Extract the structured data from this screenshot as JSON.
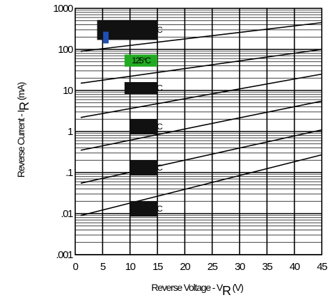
{
  "chart_data": {
    "type": "line",
    "xlabel": {
      "prefix": "Reverse Voltage - V",
      "sub": "R",
      "suffix": " (V)"
    },
    "ylabel": {
      "prefix": "Reverse Current - I",
      "sub": "R",
      "suffix": " (mA)"
    },
    "x_scale": "linear",
    "y_scale": "log",
    "xlim": [
      0,
      45
    ],
    "ylim": [
      0.001,
      1000
    ],
    "x_ticks": [
      "0",
      "5",
      "10",
      "15",
      "20",
      "25",
      "30",
      "35",
      "40",
      "45"
    ],
    "y_ticks": [
      "1000",
      "100",
      "10",
      "1",
      ".1",
      ".01",
      ".001"
    ],
    "grid": "log-minor horizontal, major vertical every 5 V",
    "series": [
      {
        "x": [
          1,
          45
        ],
        "y": [
          90,
          450
        ]
      },
      {
        "x": [
          1,
          45
        ],
        "y": [
          15,
          100
        ]
      },
      {
        "x": [
          1,
          45
        ],
        "y": [
          2.2,
          25
        ]
      },
      {
        "x": [
          1,
          45
        ],
        "y": [
          0.35,
          5.5
        ]
      },
      {
        "x": [
          1,
          45
        ],
        "y": [
          0.055,
          1.1
        ]
      },
      {
        "x": [
          1,
          45
        ],
        "y": [
          0.009,
          0.27
        ]
      }
    ],
    "annotations": [
      {
        "label": "",
        "fill": "#111111",
        "x": [
          4,
          15
        ],
        "y": [
          170,
          520
        ],
        "tail": "C"
      },
      {
        "label": "125°C",
        "fill": "#22aa22",
        "x": [
          9,
          15
        ],
        "y": [
          38,
          75
        ]
      },
      {
        "label": "",
        "fill": "#111111",
        "x": [
          9,
          15
        ],
        "y": [
          8.2,
          16
        ],
        "tail": "C"
      },
      {
        "label": "",
        "fill": "#111111",
        "x": [
          10,
          15
        ],
        "y": [
          0.85,
          2.0
        ],
        "tail": "C"
      },
      {
        "label": "",
        "fill": "#111111",
        "x": [
          10,
          15
        ],
        "y": [
          0.085,
          0.2
        ],
        "tail": "C"
      },
      {
        "label": "",
        "fill": "#111111",
        "x": [
          10,
          15
        ],
        "y": [
          0.0085,
          0.02
        ],
        "tail": "C"
      }
    ],
    "marker": {
      "fill": "#1f4fb5",
      "x": [
        5.1,
        6.1
      ],
      "y": [
        140,
        270
      ]
    }
  }
}
